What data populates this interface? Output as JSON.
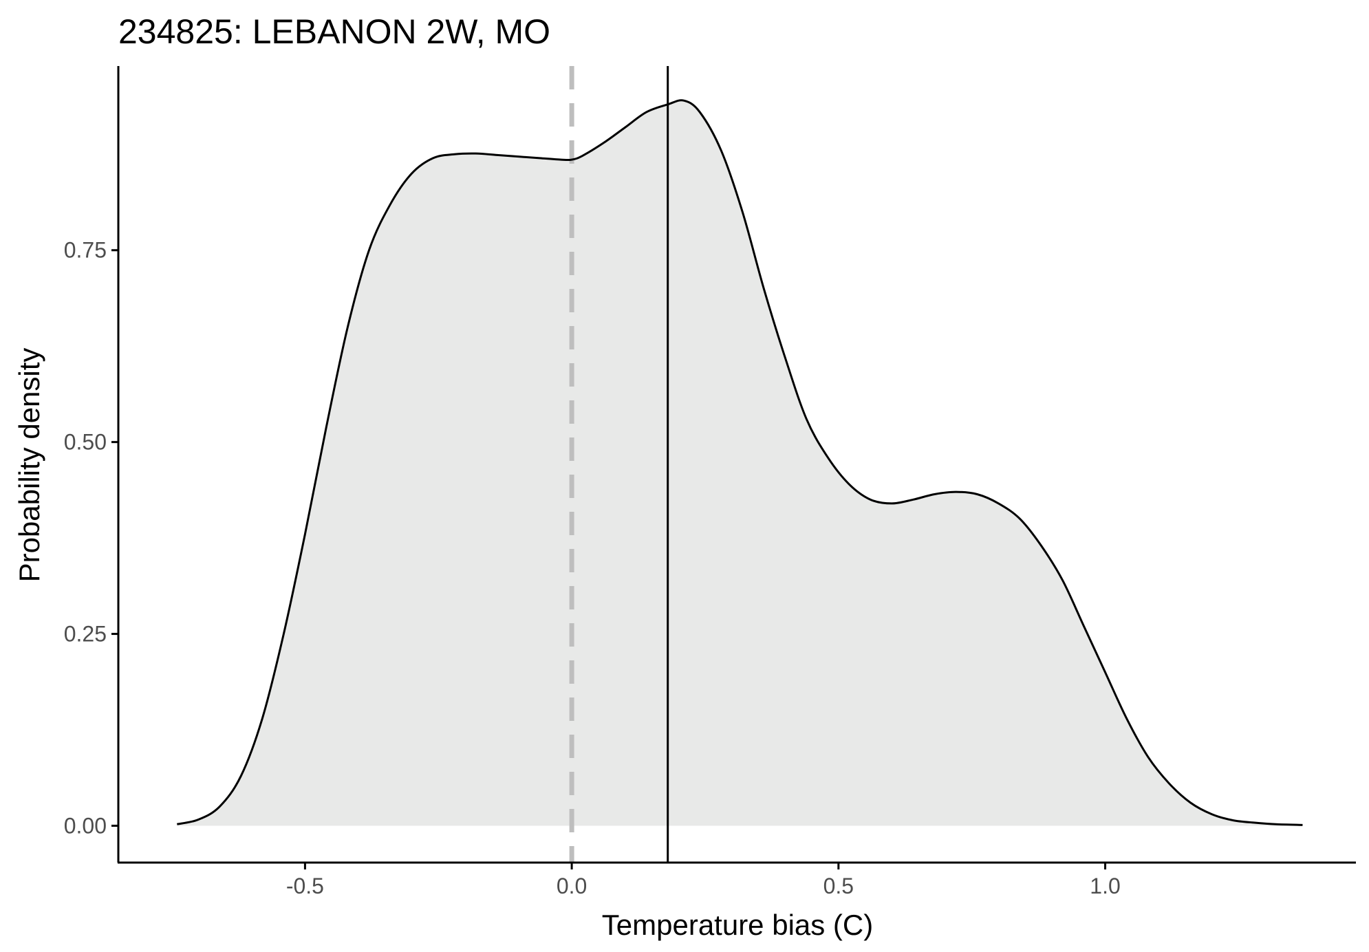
{
  "chart_data": {
    "type": "area",
    "title": "234825: LEBANON 2W, MO",
    "xlabel": "Temperature bias (C)",
    "ylabel": "Probability density",
    "xlim": [
      -0.85,
      1.47
    ],
    "ylim": [
      -0.048,
      0.99
    ],
    "x_ticks": [
      -0.5,
      0.0,
      0.5,
      1.0
    ],
    "x_tick_labels": [
      "-0.5",
      "0.0",
      "0.5",
      "1.0"
    ],
    "y_ticks": [
      0.0,
      0.25,
      0.5,
      0.75
    ],
    "y_tick_labels": [
      "0.00",
      "0.25",
      "0.50",
      "0.75"
    ],
    "grid": false,
    "legend": "none",
    "reference_lines": [
      {
        "x": 0.0,
        "style": "dashed",
        "color": "#bebebe"
      },
      {
        "x": 0.18,
        "style": "solid",
        "color": "#000000"
      }
    ],
    "colors": {
      "fill": "#e8e9e8",
      "line": "#000000",
      "axis": "#000000"
    },
    "series": [
      {
        "x": [
          -0.74,
          -0.7,
          -0.66,
          -0.62,
          -0.58,
          -0.54,
          -0.5,
          -0.46,
          -0.42,
          -0.38,
          -0.34,
          -0.3,
          -0.26,
          -0.22,
          -0.18,
          -0.14,
          -0.1,
          -0.06,
          -0.02,
          0.0,
          0.02,
          0.06,
          0.1,
          0.14,
          0.18,
          0.21,
          0.24,
          0.28,
          0.32,
          0.36,
          0.4,
          0.44,
          0.48,
          0.52,
          0.56,
          0.6,
          0.64,
          0.68,
          0.72,
          0.76,
          0.8,
          0.84,
          0.88,
          0.92,
          0.96,
          1.0,
          1.04,
          1.08,
          1.12,
          1.16,
          1.2,
          1.24,
          1.28,
          1.32,
          1.37
        ],
        "y": [
          0.002,
          0.008,
          0.025,
          0.065,
          0.14,
          0.25,
          0.38,
          0.52,
          0.65,
          0.75,
          0.81,
          0.85,
          0.87,
          0.875,
          0.876,
          0.874,
          0.872,
          0.87,
          0.868,
          0.868,
          0.873,
          0.89,
          0.91,
          0.93,
          0.94,
          0.945,
          0.93,
          0.88,
          0.8,
          0.7,
          0.61,
          0.53,
          0.48,
          0.445,
          0.425,
          0.42,
          0.425,
          0.432,
          0.435,
          0.432,
          0.42,
          0.4,
          0.365,
          0.32,
          0.26,
          0.2,
          0.14,
          0.09,
          0.055,
          0.03,
          0.015,
          0.007,
          0.004,
          0.002,
          0.001
        ]
      }
    ]
  }
}
